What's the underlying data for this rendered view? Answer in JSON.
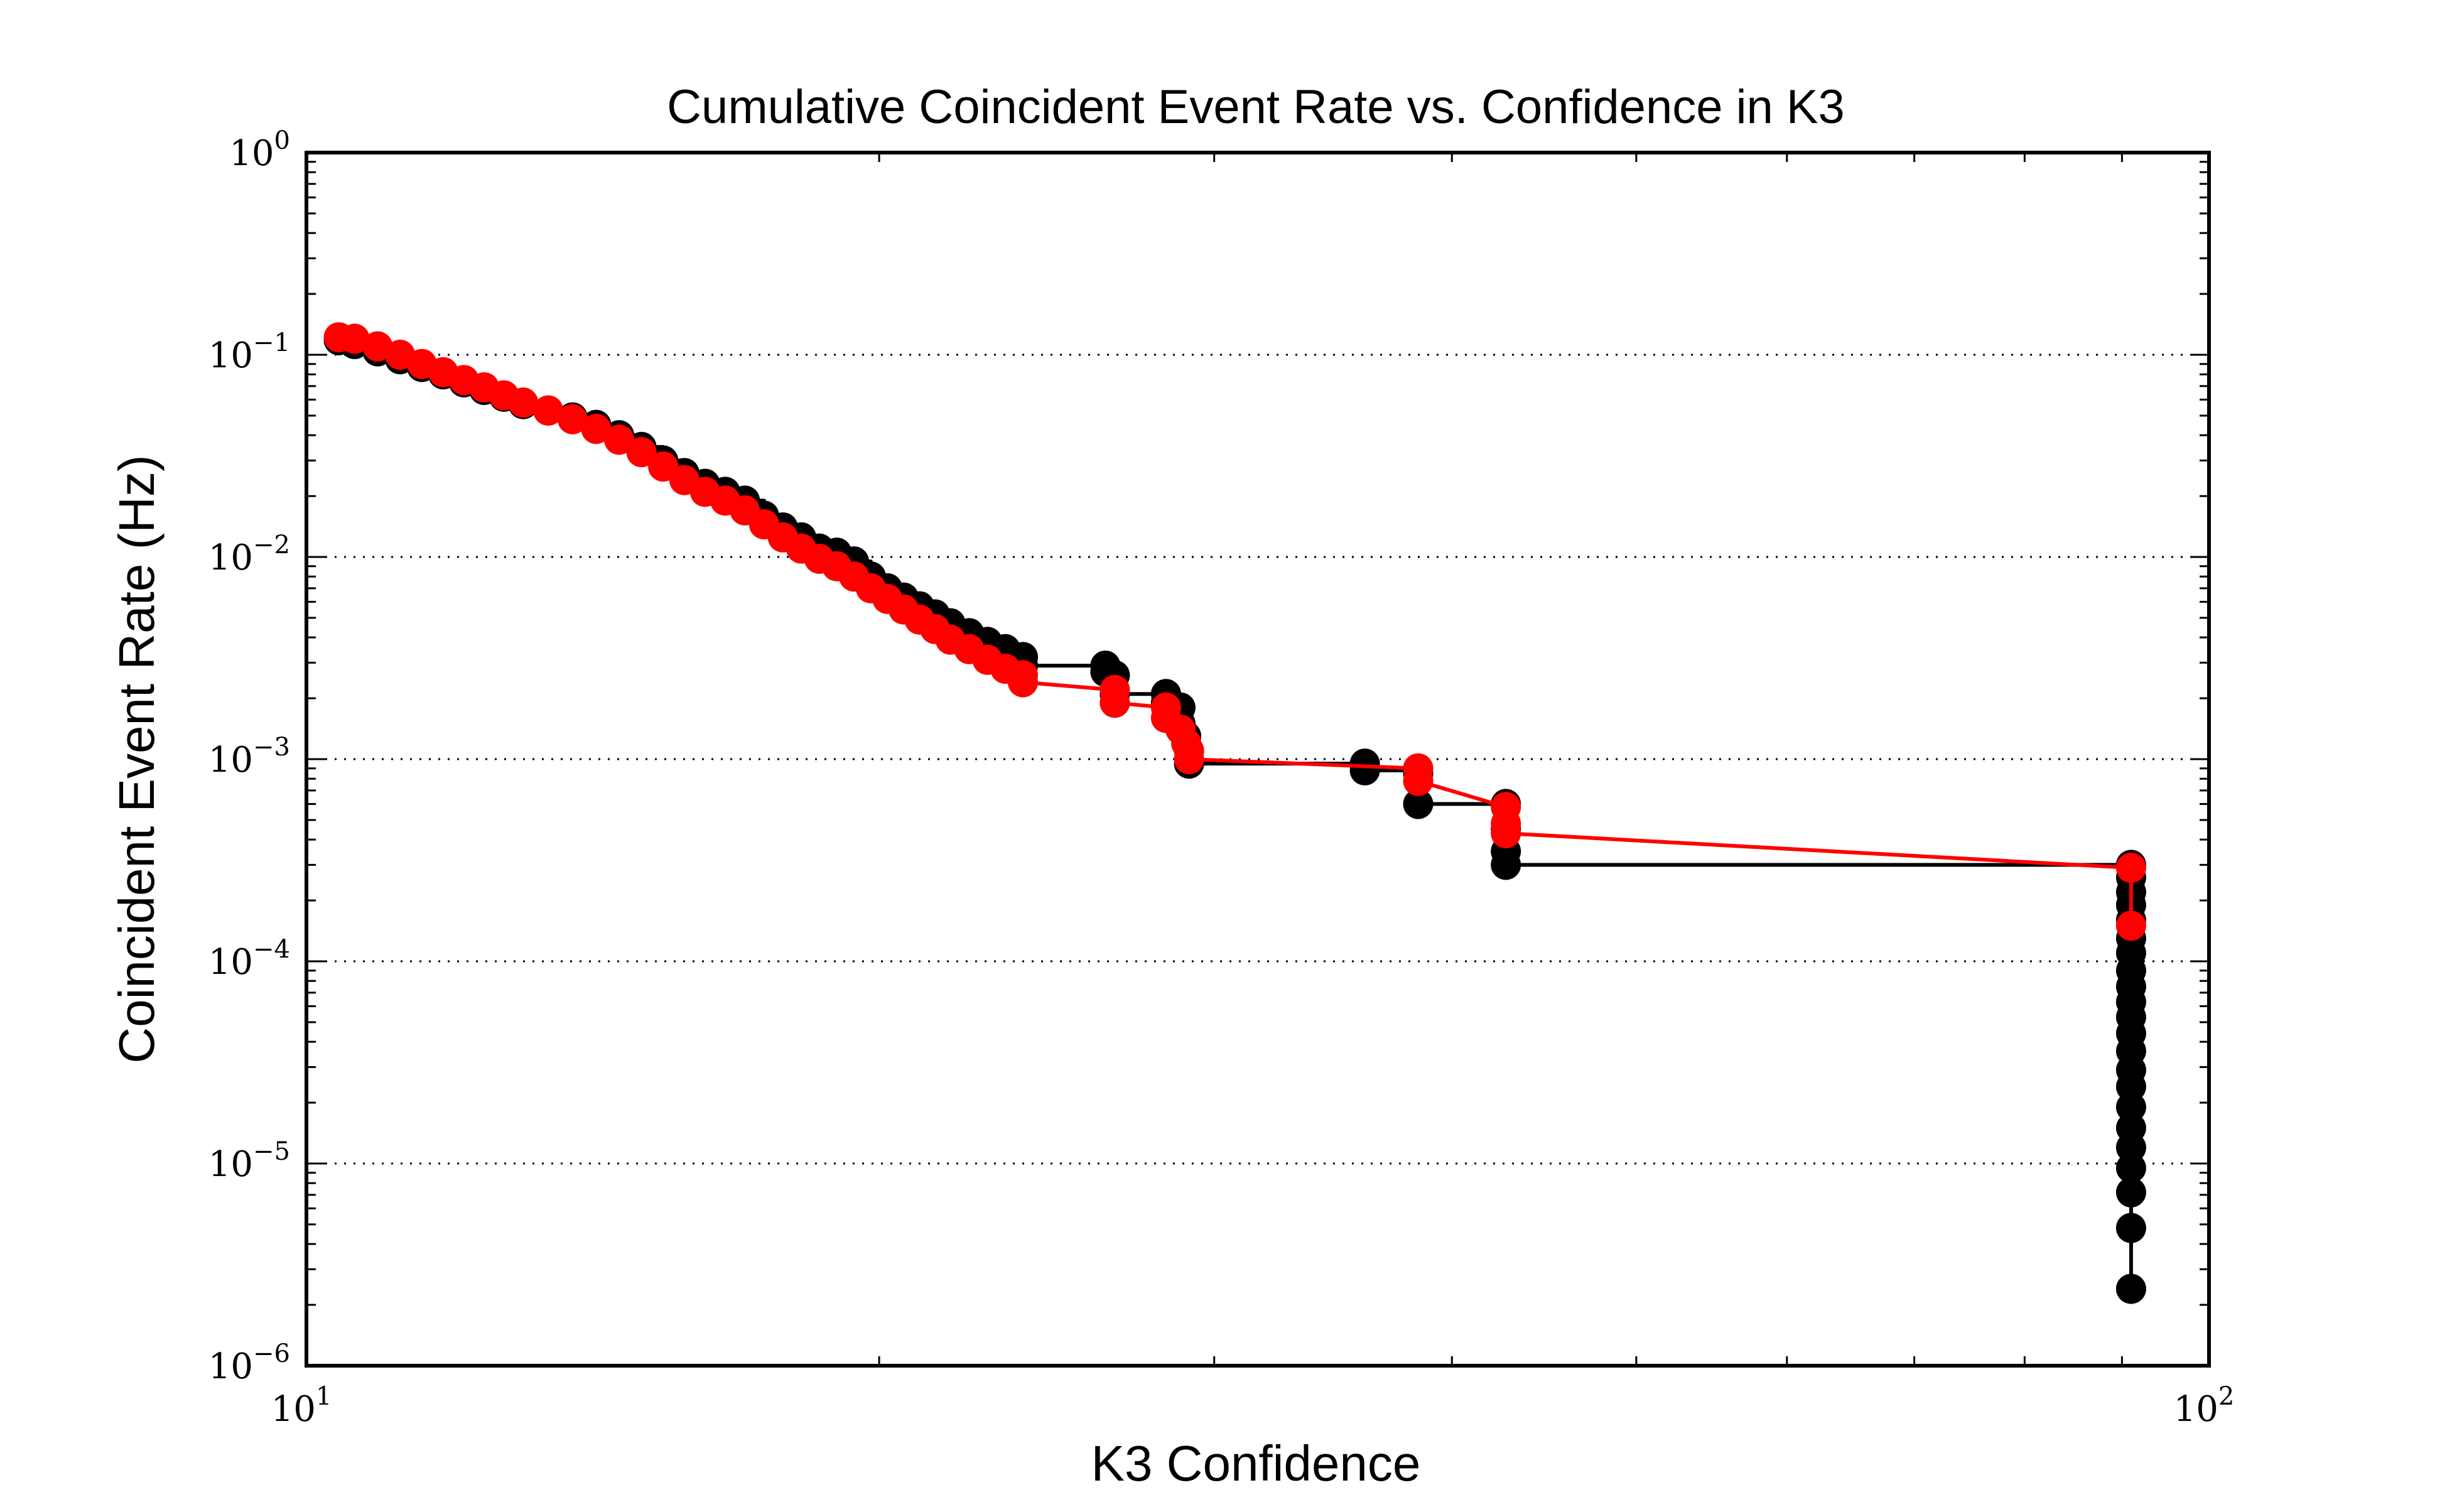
{
  "chart_data": {
    "type": "line",
    "title": "Cumulative Coincident Event Rate vs. Confidence in K3",
    "xlabel": "K3 Confidence",
    "ylabel": "Coincident Event Rate (Hz)",
    "xscale": "log",
    "yscale": "log",
    "xlim": [
      10,
      100
    ],
    "ylim": [
      1e-06,
      1
    ],
    "grid": "horizontal dotted at major y ticks",
    "x_ticks": [
      {
        "base": "10",
        "exp": "1",
        "value": 10
      },
      {
        "base": "10",
        "exp": "2",
        "value": 100
      }
    ],
    "y_ticks": [
      {
        "base": "10",
        "exp": "−6",
        "value": 1e-06
      },
      {
        "base": "10",
        "exp": "−5",
        "value": 1e-05
      },
      {
        "base": "10",
        "exp": "−4",
        "value": 0.0001
      },
      {
        "base": "10",
        "exp": "−3",
        "value": 0.001
      },
      {
        "base": "10",
        "exp": "−2",
        "value": 0.01
      },
      {
        "base": "10",
        "exp": "−1",
        "value": 0.1
      },
      {
        "base": "10",
        "exp": "0",
        "value": 1
      }
    ],
    "series": [
      {
        "color": "#000000",
        "step": true,
        "points": [
          [
            10.4,
            0.118
          ],
          [
            10.6,
            0.113
          ],
          [
            10.9,
            0.104
          ],
          [
            11.2,
            0.095
          ],
          [
            11.5,
            0.087
          ],
          [
            11.8,
            0.08
          ],
          [
            12.1,
            0.073
          ],
          [
            12.4,
            0.067
          ],
          [
            12.7,
            0.062
          ],
          [
            13.0,
            0.057
          ],
          [
            13.4,
            0.053
          ],
          [
            13.8,
            0.049
          ],
          [
            14.2,
            0.045
          ],
          [
            14.6,
            0.04
          ],
          [
            15.0,
            0.035
          ],
          [
            15.4,
            0.03
          ],
          [
            15.8,
            0.026
          ],
          [
            16.2,
            0.023
          ],
          [
            16.6,
            0.021
          ],
          [
            17.0,
            0.019
          ],
          [
            17.4,
            0.016
          ],
          [
            17.8,
            0.014
          ],
          [
            18.2,
            0.0125
          ],
          [
            18.6,
            0.011
          ],
          [
            19.0,
            0.0105
          ],
          [
            19.4,
            0.0095
          ],
          [
            19.8,
            0.008
          ],
          [
            20.2,
            0.007
          ],
          [
            20.6,
            0.0063
          ],
          [
            21.0,
            0.0057
          ],
          [
            21.4,
            0.0052
          ],
          [
            21.8,
            0.0047
          ],
          [
            22.3,
            0.0042
          ],
          [
            22.8,
            0.0038
          ],
          [
            23.3,
            0.0035
          ],
          [
            23.8,
            0.0032
          ],
          [
            23.8,
            0.0029
          ],
          [
            26.3,
            0.0029
          ],
          [
            26.3,
            0.0027
          ],
          [
            26.6,
            0.0026
          ],
          [
            26.6,
            0.0021
          ],
          [
            28.3,
            0.0021
          ],
          [
            28.3,
            0.0019
          ],
          [
            28.8,
            0.0018
          ],
          [
            28.8,
            0.0015
          ],
          [
            29.0,
            0.0013
          ],
          [
            29.1,
            0.0011
          ],
          [
            29.1,
            0.00095
          ],
          [
            36.0,
            0.00095
          ],
          [
            36.0,
            0.00088
          ],
          [
            38.4,
            0.00085
          ],
          [
            38.4,
            0.0006
          ],
          [
            42.7,
            0.0006
          ],
          [
            42.7,
            0.00045
          ],
          [
            42.7,
            0.00035
          ],
          [
            42.7,
            0.0003
          ],
          [
            91.0,
            0.0003
          ],
          [
            91.0,
            0.00026
          ],
          [
            91.0,
            0.00022
          ],
          [
            91.0,
            0.00019
          ],
          [
            91.0,
            0.00016
          ],
          [
            91.0,
            0.00013
          ],
          [
            91.0,
            0.00011
          ],
          [
            91.0,
            9e-05
          ],
          [
            91.0,
            7.5e-05
          ],
          [
            91.0,
            6.3e-05
          ],
          [
            91.0,
            5.3e-05
          ],
          [
            91.0,
            4.4e-05
          ],
          [
            91.0,
            3.6e-05
          ],
          [
            91.0,
            2.9e-05
          ],
          [
            91.0,
            2.4e-05
          ],
          [
            91.0,
            1.9e-05
          ],
          [
            91.0,
            1.5e-05
          ],
          [
            91.0,
            1.2e-05
          ],
          [
            91.0,
            9.5e-06
          ],
          [
            91.0,
            7.2e-06
          ],
          [
            91.0,
            4.8e-06
          ],
          [
            91.0,
            2.4e-06
          ]
        ]
      },
      {
        "color": "#ff0000",
        "step": false,
        "points": [
          [
            10.4,
            0.122
          ],
          [
            10.6,
            0.12
          ],
          [
            10.9,
            0.11
          ],
          [
            11.2,
            0.1
          ],
          [
            11.5,
            0.09
          ],
          [
            11.8,
            0.082
          ],
          [
            12.1,
            0.075
          ],
          [
            12.4,
            0.069
          ],
          [
            12.7,
            0.063
          ],
          [
            13.0,
            0.058
          ],
          [
            13.4,
            0.053
          ],
          [
            13.8,
            0.048
          ],
          [
            14.2,
            0.043
          ],
          [
            14.6,
            0.038
          ],
          [
            15.0,
            0.033
          ],
          [
            15.4,
            0.028
          ],
          [
            15.8,
            0.024
          ],
          [
            16.2,
            0.021
          ],
          [
            16.6,
            0.019
          ],
          [
            17.0,
            0.017
          ],
          [
            17.4,
            0.0145
          ],
          [
            17.8,
            0.0125
          ],
          [
            18.2,
            0.011
          ],
          [
            18.6,
            0.0098
          ],
          [
            19.0,
            0.009
          ],
          [
            19.4,
            0.008
          ],
          [
            19.8,
            0.007
          ],
          [
            20.2,
            0.0062
          ],
          [
            20.6,
            0.0055
          ],
          [
            21.0,
            0.0049
          ],
          [
            21.4,
            0.0044
          ],
          [
            21.8,
            0.0039
          ],
          [
            22.3,
            0.0035
          ],
          [
            22.8,
            0.0031
          ],
          [
            23.3,
            0.0028
          ],
          [
            23.8,
            0.0026
          ],
          [
            23.8,
            0.0024
          ],
          [
            26.6,
            0.0022
          ],
          [
            26.6,
            0.0019
          ],
          [
            28.3,
            0.0018
          ],
          [
            28.3,
            0.0016
          ],
          [
            28.8,
            0.0014
          ],
          [
            29.0,
            0.0012
          ],
          [
            29.1,
            0.0011
          ],
          [
            29.1,
            0.001
          ],
          [
            38.4,
            0.0009
          ],
          [
            38.4,
            0.00078
          ],
          [
            42.7,
            0.00058
          ],
          [
            42.7,
            0.00048
          ],
          [
            42.7,
            0.00043
          ],
          [
            91.0,
            0.00029
          ],
          [
            91.0,
            0.00015
          ]
        ]
      }
    ]
  }
}
